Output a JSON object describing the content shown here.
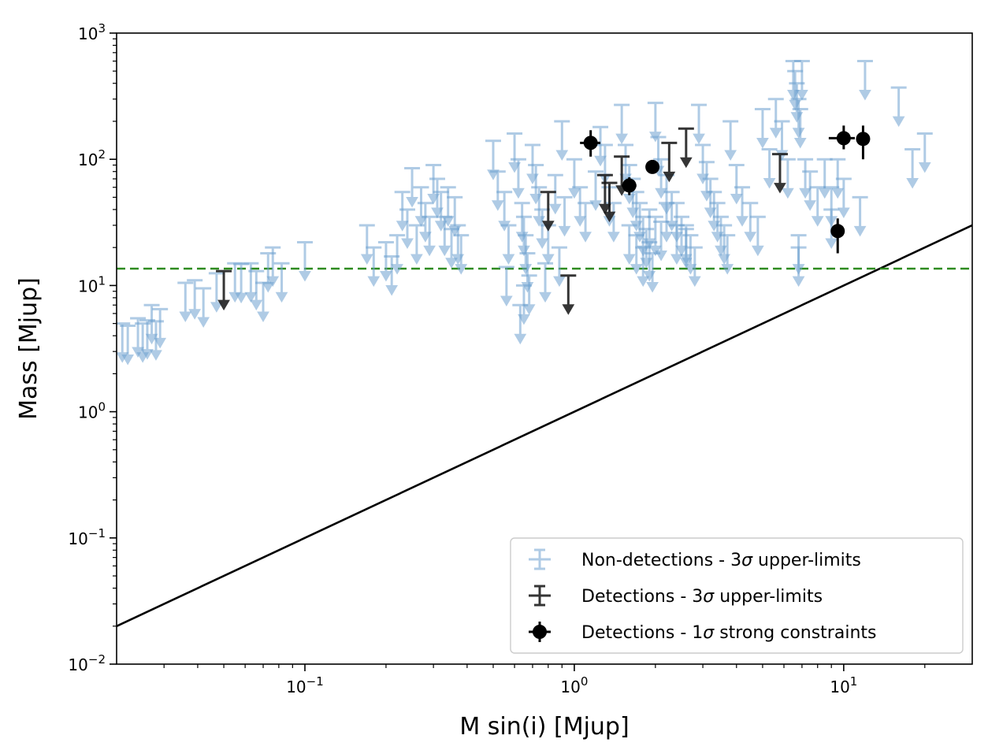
{
  "chart_data": {
    "type": "scatter",
    "title": "",
    "xlabel": "M sin(i) [Mjup]",
    "ylabel": "Mass [Mjup]",
    "xscale": "log",
    "yscale": "log",
    "xlim": [
      0.02,
      30
    ],
    "ylim": [
      0.01,
      1000
    ],
    "x_ticks": [
      {
        "value": 0.1,
        "base": "10",
        "exp": "−1"
      },
      {
        "value": 1,
        "base": "10",
        "exp": "0"
      },
      {
        "value": 10,
        "base": "10",
        "exp": "1"
      }
    ],
    "y_ticks": [
      {
        "value": 0.01,
        "base": "10",
        "exp": "−2"
      },
      {
        "value": 0.1,
        "base": "10",
        "exp": "−1"
      },
      {
        "value": 1,
        "base": "10",
        "exp": "0"
      },
      {
        "value": 10,
        "base": "10",
        "exp": "1"
      },
      {
        "value": 100,
        "base": "10",
        "exp": "2"
      },
      {
        "value": 1000,
        "base": "10",
        "exp": "3"
      }
    ],
    "grid": false,
    "legend_position": "lower-right",
    "legend": [
      {
        "pre": "Non-detections - 3",
        "post": " upper-limits"
      },
      {
        "pre": "Detections - 3",
        "post": " upper-limits"
      },
      {
        "pre": "Detections - 1",
        "post": " strong constraints"
      }
    ],
    "sigma_symbol": "σ",
    "reference_lines": [
      {
        "kind": "one-to-one",
        "style": "solid",
        "color": "#000000"
      },
      {
        "kind": "horizontal",
        "y": 13.6,
        "style": "dashed",
        "color": "#2e8b1f"
      }
    ],
    "colors": {
      "nondetection": "#6fa2d0",
      "detection_limit": "#1a1a1a",
      "detection_point": "#000000"
    },
    "series": [
      {
        "name": "Non-detections - 3σ upper-limits",
        "kind": "upper-limit",
        "points": [
          [
            0.021,
            5.0
          ],
          [
            0.022,
            4.8
          ],
          [
            0.024,
            5.5
          ],
          [
            0.025,
            5.0
          ],
          [
            0.026,
            5.3
          ],
          [
            0.027,
            7.0
          ],
          [
            0.028,
            5.2
          ],
          [
            0.029,
            6.5
          ],
          [
            0.036,
            10.5
          ],
          [
            0.039,
            11.0
          ],
          [
            0.042,
            9.5
          ],
          [
            0.047,
            12.5
          ],
          [
            0.055,
            15.0
          ],
          [
            0.058,
            14.8
          ],
          [
            0.063,
            15.0
          ],
          [
            0.066,
            13.0
          ],
          [
            0.07,
            10.5
          ],
          [
            0.073,
            18.0
          ],
          [
            0.076,
            20.0
          ],
          [
            0.082,
            15.0
          ],
          [
            0.1,
            22.0
          ],
          [
            0.17,
            30.0
          ],
          [
            0.18,
            20.0
          ],
          [
            0.2,
            22.0
          ],
          [
            0.21,
            17.0
          ],
          [
            0.22,
            25.0
          ],
          [
            0.23,
            55.0
          ],
          [
            0.24,
            40.0
          ],
          [
            0.25,
            85.0
          ],
          [
            0.26,
            30.0
          ],
          [
            0.27,
            60.0
          ],
          [
            0.28,
            45.0
          ],
          [
            0.29,
            35.0
          ],
          [
            0.3,
            90.0
          ],
          [
            0.31,
            70.0
          ],
          [
            0.32,
            55.0
          ],
          [
            0.33,
            35.0
          ],
          [
            0.34,
            60.0
          ],
          [
            0.35,
            28.0
          ],
          [
            0.36,
            50.0
          ],
          [
            0.37,
            30.0
          ],
          [
            0.38,
            25.0
          ],
          [
            0.5,
            140.0
          ],
          [
            0.52,
            80.0
          ],
          [
            0.55,
            55.0
          ],
          [
            0.57,
            30.0
          ],
          [
            0.6,
            160.0
          ],
          [
            0.62,
            100.0
          ],
          [
            0.64,
            45.0
          ],
          [
            0.65,
            35.0
          ],
          [
            0.66,
            25.0
          ],
          [
            0.67,
            18.0
          ],
          [
            0.68,
            12.0
          ],
          [
            0.7,
            130.0
          ],
          [
            0.72,
            90.0
          ],
          [
            0.74,
            60.0
          ],
          [
            0.76,
            40.0
          ],
          [
            0.78,
            15.0
          ],
          [
            0.8,
            30.0
          ],
          [
            0.85,
            75.0
          ],
          [
            0.88,
            20.0
          ],
          [
            0.92,
            50.0
          ],
          [
            0.9,
            200.0
          ],
          [
            0.63,
            7.0
          ],
          [
            0.65,
            10.0
          ],
          [
            0.56,
            14.0
          ],
          [
            1.0,
            100.0
          ],
          [
            1.05,
            60.0
          ],
          [
            1.1,
            45.0
          ],
          [
            1.2,
            80.0
          ],
          [
            1.25,
            180.0
          ],
          [
            1.3,
            130.0
          ],
          [
            1.35,
            60.0
          ],
          [
            1.4,
            45.0
          ],
          [
            1.5,
            270.0
          ],
          [
            1.55,
            130.0
          ],
          [
            1.6,
            90.0
          ],
          [
            1.65,
            70.0
          ],
          [
            1.7,
            55.0
          ],
          [
            1.75,
            45.0
          ],
          [
            1.8,
            35.0
          ],
          [
            1.85,
            28.0
          ],
          [
            1.9,
            22.0
          ],
          [
            1.95,
            18.0
          ],
          [
            2.0,
            280.0
          ],
          [
            2.05,
            150.0
          ],
          [
            2.1,
            100.0
          ],
          [
            2.2,
            75.0
          ],
          [
            2.3,
            55.0
          ],
          [
            2.4,
            45.0
          ],
          [
            2.5,
            35.0
          ],
          [
            2.6,
            28.0
          ],
          [
            2.7,
            25.0
          ],
          [
            2.8,
            20.0
          ],
          [
            2.9,
            270.0
          ],
          [
            3.0,
            130.0
          ],
          [
            3.1,
            95.0
          ],
          [
            3.2,
            70.0
          ],
          [
            3.3,
            55.0
          ],
          [
            3.4,
            45.0
          ],
          [
            3.5,
            35.0
          ],
          [
            3.6,
            30.0
          ],
          [
            3.7,
            25.0
          ],
          [
            1.6,
            30.0
          ],
          [
            1.7,
            25.0
          ],
          [
            1.8,
            20.0
          ],
          [
            1.9,
            40.0
          ],
          [
            2.0,
            35.0
          ],
          [
            2.1,
            32.0
          ],
          [
            2.2,
            45.0
          ],
          [
            2.4,
            30.0
          ],
          [
            2.6,
            30.0
          ],
          [
            3.8,
            200.0
          ],
          [
            4.0,
            90.0
          ],
          [
            4.2,
            60.0
          ],
          [
            4.5,
            45.0
          ],
          [
            4.8,
            35.0
          ],
          [
            5.0,
            250.0
          ],
          [
            5.3,
            120.0
          ],
          [
            5.6,
            300.0
          ],
          [
            5.9,
            200.0
          ],
          [
            6.2,
            100.0
          ],
          [
            6.5,
            600.0
          ],
          [
            6.6,
            500.0
          ],
          [
            6.7,
            400.0
          ],
          [
            6.8,
            300.0
          ],
          [
            6.9,
            250.0
          ],
          [
            7.0,
            600.0
          ],
          [
            7.2,
            100.0
          ],
          [
            7.5,
            80.0
          ],
          [
            8.0,
            60.0
          ],
          [
            8.5,
            100.0
          ],
          [
            9.0,
            60.0
          ],
          [
            9.5,
            100.0
          ],
          [
            10.0,
            70.0
          ],
          [
            11.5,
            50.0
          ],
          [
            12.0,
            600.0
          ],
          [
            16.0,
            370.0
          ],
          [
            18.0,
            120.0
          ],
          [
            20.0,
            160.0
          ],
          [
            6.8,
            20.0
          ],
          [
            6.8,
            25.0
          ],
          [
            9.0,
            40.0
          ]
        ]
      },
      {
        "name": "Detections - 3σ upper-limits",
        "kind": "upper-limit",
        "points": [
          [
            0.05,
            13.0
          ],
          [
            0.8,
            55.0
          ],
          [
            0.95,
            12.0
          ],
          [
            1.3,
            75.0
          ],
          [
            1.35,
            65.0
          ],
          [
            1.5,
            105.0
          ],
          [
            2.25,
            135.0
          ],
          [
            2.6,
            175.0
          ],
          [
            5.8,
            110.0
          ]
        ]
      },
      {
        "name": "Detections - 1σ strong constraints",
        "kind": "point",
        "points": [
          {
            "x": 1.15,
            "y": 135.0,
            "ylo": 105.0,
            "yhi": 170.0,
            "xlo": 1.05,
            "xhi": 1.25
          },
          {
            "x": 1.6,
            "y": 62.0,
            "ylo": 52.0,
            "yhi": 72.0,
            "xlo": 1.5,
            "xhi": 1.7
          },
          {
            "x": 1.95,
            "y": 87.0,
            "ylo": 78.0,
            "yhi": 95.0,
            "xlo": 1.85,
            "xhi": 2.05
          },
          {
            "x": 9.5,
            "y": 27.0,
            "ylo": 18.0,
            "yhi": 34.0,
            "xlo": 9.2,
            "xhi": 9.8
          },
          {
            "x": 10.0,
            "y": 147.0,
            "ylo": 120.0,
            "yhi": 185.0,
            "xlo": 8.8,
            "xhi": 11.0
          },
          {
            "x": 11.8,
            "y": 145.0,
            "ylo": 100.0,
            "yhi": 185.0,
            "xlo": 11.2,
            "xhi": 12.4
          }
        ]
      }
    ]
  }
}
